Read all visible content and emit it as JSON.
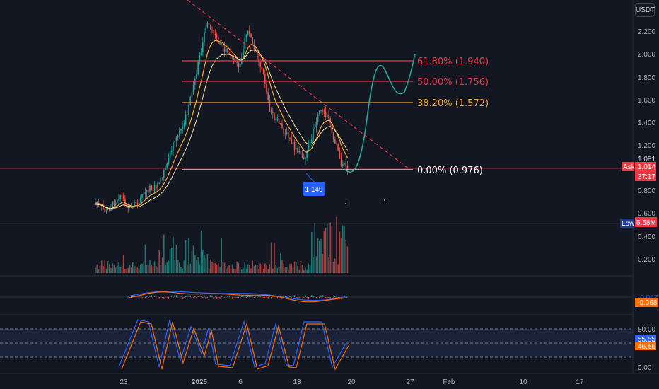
{
  "currency": "USDT",
  "price_axis": [
    "2.200",
    "2.000",
    "1.800",
    "1.600",
    "1.400",
    "1.200",
    "0.800",
    "0.600",
    "0.400",
    "0.200"
  ],
  "date_axis": [
    "23",
    "2025",
    "6",
    "13",
    "20",
    "27",
    "Feb",
    "10",
    "17"
  ],
  "fib_levels": [
    {
      "label": "61.80% (1.940)",
      "color": "#f23645"
    },
    {
      "label": "50.00% (1.756)",
      "color": "#f23645"
    },
    {
      "label": "38.20% (1.572)",
      "color": "#f7a934"
    },
    {
      "label": "0.00% (0.976)",
      "color": "#ffffff"
    }
  ],
  "low_callout": "1.140",
  "price_tags": {
    "high_value": "1.081",
    "ask_label": "Ask",
    "ask_value": "1.014",
    "countdown": "37:17",
    "low_label": "Low",
    "volume_value": "5.58M",
    "macd_value_a": "-0.047",
    "macd_value_b": "-0.068",
    "stoch_value_a": "55.55",
    "stoch_value_b": "46.56"
  },
  "stoch_axis": [
    "80.00",
    "0.00"
  ],
  "colors": {
    "bull": "#26a69a",
    "bear": "#ef5350",
    "fib_red": "#f23645",
    "fib_orange": "#f7a934",
    "projection": "#26a69a",
    "k_line": "#2962ff",
    "d_line": "#ff6d00"
  }
}
